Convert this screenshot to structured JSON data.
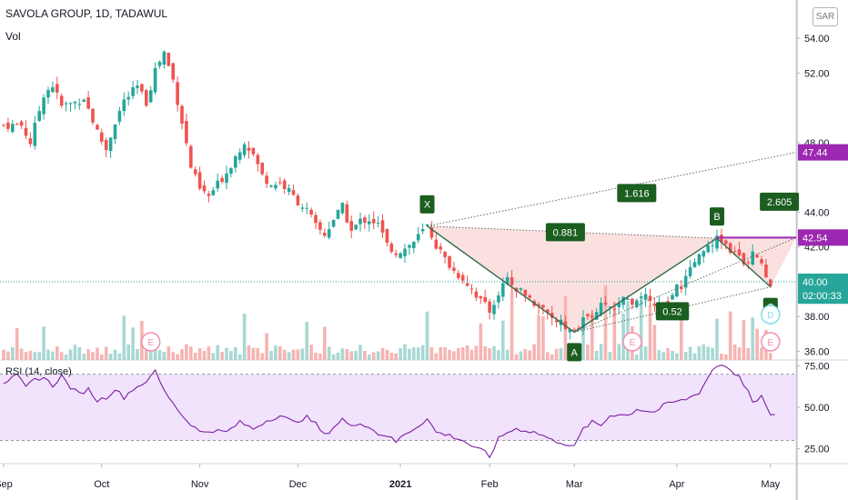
{
  "header": {
    "title": "SAVOLA GROUP, 1D, TADAWUL",
    "volume_label": "Vol",
    "rsi_label": "RSI (14, close)",
    "currency": "SAR"
  },
  "colors": {
    "up": "#26a69a",
    "down": "#ef5350",
    "pattern_line": "#2e6b4a",
    "pattern_fill": "#f9d0d0",
    "label_bg": "#1b5e20",
    "rsi_line": "#7b1fa2",
    "rsi_band": "#f1e3fb",
    "price_tag": "#26a69a",
    "purple_tag": "#9c27b0",
    "earnings": "#f48fb1",
    "dividend": "#80deea"
  },
  "chart_data": {
    "type": "candlestick",
    "ylim": [
      35.5,
      56.2
    ],
    "rsi_ylim": [
      16,
      78
    ],
    "price_ticks": [
      "54.00",
      "52.00",
      "48.00",
      "44.00",
      "42.00",
      "38.00",
      "36.00"
    ],
    "price_tick_values": [
      54,
      52,
      48,
      44,
      42,
      38,
      36
    ],
    "rsi_ticks": [
      "75.00",
      "50.00",
      "25.00"
    ],
    "rsi_tick_values": [
      75,
      50,
      25
    ],
    "x_labels": [
      "Sep",
      "Oct",
      "Nov",
      "Dec",
      "2021",
      "Feb",
      "Mar",
      "Apr",
      "May"
    ],
    "x_label_positions": [
      0,
      22,
      44,
      66,
      89,
      109,
      128,
      151,
      172
    ],
    "price_tags": [
      {
        "value": 47.44,
        "label": "47.44",
        "color": "purple"
      },
      {
        "value": 42.54,
        "label": "42.54",
        "color": "purple"
      },
      {
        "value": 40.0,
        "label": "40.00",
        "color": "teal"
      },
      {
        "value": 39.2,
        "label": "02:00:33",
        "color": "teal"
      }
    ],
    "pattern": {
      "points": [
        {
          "name": "X",
          "index": 95,
          "price": 43.2
        },
        {
          "name": "A",
          "index": 128,
          "price": 37.1
        },
        {
          "name": "B",
          "index": 160,
          "price": 42.5
        },
        {
          "name": "C",
          "index": 172,
          "price": 39.7
        }
      ],
      "ratios": [
        {
          "label": "0.881",
          "index": 126,
          "price": 42.85
        },
        {
          "label": "1.616",
          "index": 142,
          "price": 45.1
        },
        {
          "label": "0.52",
          "index": 150,
          "price": 38.3
        },
        {
          "label": "2.605",
          "index": 174,
          "price": 44.6
        }
      ],
      "projection_1616": 47.44,
      "projection_2605": 42.54
    },
    "events": [
      {
        "type": "E",
        "index": 33
      },
      {
        "type": "E",
        "index": 141
      },
      {
        "type": "E",
        "index": 172
      },
      {
        "type": "D",
        "index": 172
      }
    ],
    "close_anchors": [
      [
        0,
        49.0
      ],
      [
        4,
        49.0
      ],
      [
        6,
        48.0
      ],
      [
        9,
        50.8
      ],
      [
        11,
        51.3
      ],
      [
        13,
        50.1
      ],
      [
        16,
        50.3
      ],
      [
        18,
        50.6
      ],
      [
        21,
        48.6
      ],
      [
        23,
        47.6
      ],
      [
        25,
        49.2
      ],
      [
        27,
        50.4
      ],
      [
        30,
        51.2
      ],
      [
        32,
        50.3
      ],
      [
        34,
        52.2
      ],
      [
        36,
        53.2
      ],
      [
        38,
        51.6
      ],
      [
        40,
        49.2
      ],
      [
        42,
        46.6
      ],
      [
        44,
        45.3
      ],
      [
        46,
        44.9
      ],
      [
        48,
        45.6
      ],
      [
        50,
        46.3
      ],
      [
        52,
        47.2
      ],
      [
        54,
        48.1
      ],
      [
        56,
        47.3
      ],
      [
        58,
        46.1
      ],
      [
        60,
        45.6
      ],
      [
        62,
        45.7
      ],
      [
        64,
        45.2
      ],
      [
        66,
        44.6
      ],
      [
        68,
        44.1
      ],
      [
        70,
        43.2
      ],
      [
        72,
        42.7
      ],
      [
        74,
        43.6
      ],
      [
        76,
        44.3
      ],
      [
        78,
        42.9
      ],
      [
        80,
        43.5
      ],
      [
        82,
        43.6
      ],
      [
        84,
        43.3
      ],
      [
        86,
        42.1
      ],
      [
        88,
        41.7
      ],
      [
        90,
        41.9
      ],
      [
        92,
        42.3
      ],
      [
        95,
        43.2
      ],
      [
        97,
        42.1
      ],
      [
        99,
        41.3
      ],
      [
        101,
        40.6
      ],
      [
        103,
        40.2
      ],
      [
        105,
        39.6
      ],
      [
        107,
        38.9
      ],
      [
        109,
        38.3
      ],
      [
        111,
        39.4
      ],
      [
        113,
        40.1
      ],
      [
        115,
        39.6
      ],
      [
        117,
        39.2
      ],
      [
        119,
        38.8
      ],
      [
        121,
        38.4
      ],
      [
        123,
        38.0
      ],
      [
        125,
        37.6
      ],
      [
        127,
        37.3
      ],
      [
        128,
        37.1
      ],
      [
        130,
        37.8
      ],
      [
        132,
        38.2
      ],
      [
        134,
        38.6
      ],
      [
        136,
        38.4
      ],
      [
        138,
        38.9
      ],
      [
        140,
        39.1
      ],
      [
        142,
        38.7
      ],
      [
        144,
        39.3
      ],
      [
        146,
        38.5
      ],
      [
        148,
        38.6
      ],
      [
        150,
        39.4
      ],
      [
        152,
        39.8
      ],
      [
        154,
        40.6
      ],
      [
        156,
        41.4
      ],
      [
        158,
        42.1
      ],
      [
        160,
        42.5
      ],
      [
        162,
        42.1
      ],
      [
        164,
        41.7
      ],
      [
        166,
        40.9
      ],
      [
        168,
        41.7
      ],
      [
        170,
        41.2
      ],
      [
        172,
        39.7
      ]
    ],
    "rsi_anchors": [
      [
        0,
        65
      ],
      [
        3,
        69
      ],
      [
        5,
        62
      ],
      [
        7,
        67
      ],
      [
        9,
        68
      ],
      [
        11,
        63
      ],
      [
        13,
        69
      ],
      [
        15,
        62
      ],
      [
        17,
        58
      ],
      [
        19,
        61
      ],
      [
        21,
        54
      ],
      [
        23,
        56
      ],
      [
        25,
        61
      ],
      [
        27,
        56
      ],
      [
        29,
        61
      ],
      [
        31,
        64
      ],
      [
        33,
        68
      ],
      [
        34,
        72
      ],
      [
        36,
        60
      ],
      [
        38,
        53
      ],
      [
        40,
        45
      ],
      [
        42,
        40
      ],
      [
        44,
        35
      ],
      [
        47,
        36
      ],
      [
        50,
        35
      ],
      [
        53,
        41
      ],
      [
        56,
        37
      ],
      [
        59,
        42
      ],
      [
        62,
        45
      ],
      [
        65,
        41
      ],
      [
        68,
        44
      ],
      [
        70,
        40
      ],
      [
        72,
        33
      ],
      [
        74,
        38
      ],
      [
        76,
        43
      ],
      [
        78,
        38
      ],
      [
        80,
        41
      ],
      [
        82,
        38
      ],
      [
        84,
        34
      ],
      [
        86,
        33
      ],
      [
        88,
        29
      ],
      [
        90,
        34
      ],
      [
        92,
        37
      ],
      [
        95,
        43
      ],
      [
        97,
        35
      ],
      [
        100,
        33
      ],
      [
        103,
        30
      ],
      [
        106,
        25
      ],
      [
        108,
        23
      ],
      [
        109,
        20
      ],
      [
        111,
        31
      ],
      [
        113,
        35
      ],
      [
        115,
        37
      ],
      [
        117,
        36
      ],
      [
        119,
        35
      ],
      [
        121,
        33
      ],
      [
        123,
        30
      ],
      [
        125,
        29
      ],
      [
        127,
        27
      ],
      [
        128,
        26
      ],
      [
        130,
        37
      ],
      [
        132,
        41
      ],
      [
        134,
        39
      ],
      [
        136,
        45
      ],
      [
        138,
        46
      ],
      [
        140,
        45
      ],
      [
        142,
        49
      ],
      [
        144,
        48
      ],
      [
        146,
        47
      ],
      [
        148,
        51
      ],
      [
        150,
        53
      ],
      [
        152,
        54
      ],
      [
        154,
        56
      ],
      [
        156,
        59
      ],
      [
        158,
        68
      ],
      [
        159,
        73
      ],
      [
        161,
        76
      ],
      [
        163,
        73
      ],
      [
        165,
        68
      ],
      [
        167,
        60
      ],
      [
        168,
        52
      ],
      [
        170,
        56
      ],
      [
        171,
        52
      ],
      [
        172,
        45
      ],
      [
        173,
        45
      ]
    ]
  }
}
